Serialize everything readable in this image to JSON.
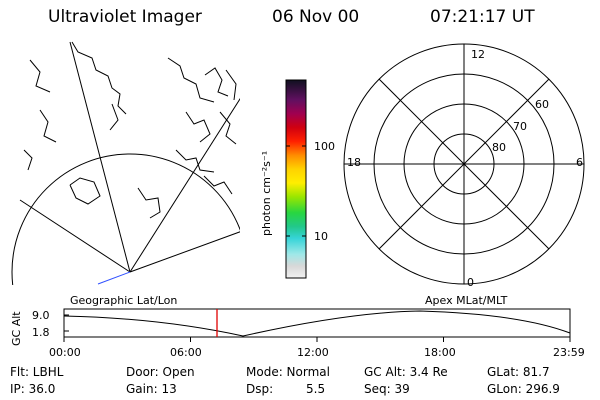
{
  "header": {
    "instrument": "Ultraviolet Imager",
    "date": "06 Nov 00",
    "time": "07:21:17 UT"
  },
  "colorbar": {
    "label": "photon cm⁻²s⁻¹",
    "ticks": [
      "100",
      "10"
    ]
  },
  "left_map": {
    "label": "Geographic Lat/Lon"
  },
  "polar_plot": {
    "label": "Apex MLat/MLT",
    "mlt_labels": {
      "top": "12",
      "left": "18",
      "right": "6",
      "bottom": "0"
    },
    "lat_labels": [
      "60",
      "70",
      "80"
    ]
  },
  "altitude_plot": {
    "ylabel": "GC Alt",
    "ytick_top": "9.0",
    "ytick_bottom": "1.8",
    "xticks": [
      "00:00",
      "06:00",
      "12:00",
      "18:00",
      "23:59"
    ]
  },
  "info": {
    "row1": [
      "Flt: LBHL",
      "Door: Open",
      "Mode: Normal",
      "GC Alt: 3.4 Re",
      "GLat: 81.7"
    ],
    "row2": [
      "IP: 36.0",
      "Gain: 13",
      "Dsp:",
      "5.5",
      "Seq: 39",
      "GLon: 296.9"
    ]
  }
}
